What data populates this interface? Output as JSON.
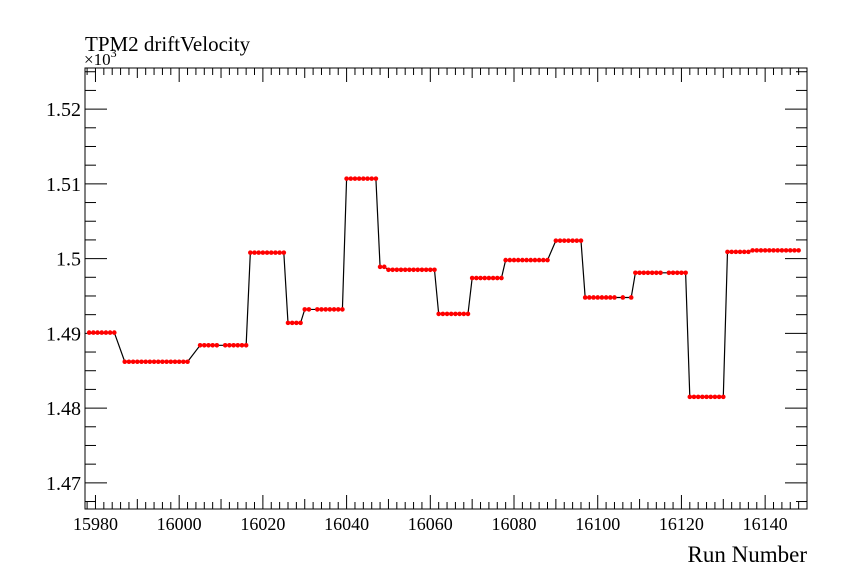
{
  "chart_data": {
    "type": "line",
    "title": "TPM2 driftVelocity",
    "xlabel": "Run Number",
    "ylabel": "",
    "y_multiplier_label": "×10",
    "y_multiplier_exponent": "3",
    "xlim": [
      15977.5,
      16150
    ],
    "ylim": [
      1.4665,
      1.5255
    ],
    "xticks": [
      15980,
      16000,
      16020,
      16040,
      16060,
      16080,
      16100,
      16120,
      16140
    ],
    "xtick_labels": [
      "15980",
      "16000",
      "16020",
      "16040",
      "16060",
      "16080",
      "16100",
      "16120",
      "16140"
    ],
    "yticks": [
      1.47,
      1.48,
      1.49,
      1.5,
      1.51,
      1.52
    ],
    "ytick_labels": [
      "1.47",
      "1.48",
      "1.49",
      "1.5",
      "1.51",
      "1.52"
    ],
    "grid": false,
    "line_color": "#000000",
    "marker_color": "#ff0000",
    "segments": [
      {
        "x_start": 15978.5,
        "x_end": 15984.5,
        "step": 1,
        "y": 1.4901
      },
      {
        "x_start": 15987,
        "x_end": 16002,
        "step": 1,
        "y": 1.4862
      },
      {
        "x_start": 16005,
        "x_end": 16009,
        "step": 1,
        "y": 1.4884
      },
      {
        "x_start": 16011,
        "x_end": 16016,
        "step": 1,
        "y": 1.4884
      },
      {
        "x_start": 16017,
        "x_end": 16025,
        "step": 1,
        "y": 1.5008
      },
      {
        "x_start": 16026,
        "x_end": 16029,
        "step": 1,
        "y": 1.4914
      },
      {
        "x_start": 16030,
        "x_end": 16031,
        "step": 1,
        "y": 1.4932
      },
      {
        "x_start": 16033,
        "x_end": 16039,
        "step": 1,
        "y": 1.4932
      },
      {
        "x_start": 16040,
        "x_end": 16047,
        "step": 1,
        "y": 1.5107
      },
      {
        "x_start": 16048,
        "x_end": 16049,
        "step": 1,
        "y": 1.4989
      },
      {
        "x_start": 16050,
        "x_end": 16061,
        "step": 1,
        "y": 1.4985
      },
      {
        "x_start": 16062,
        "x_end": 16069,
        "step": 1,
        "y": 1.4926
      },
      {
        "x_start": 16070,
        "x_end": 16077,
        "step": 1,
        "y": 1.4974
      },
      {
        "x_start": 16078,
        "x_end": 16088,
        "step": 1,
        "y": 1.4998
      },
      {
        "x_start": 16090,
        "x_end": 16096,
        "step": 1,
        "y": 1.5024
      },
      {
        "x_start": 16097,
        "x_end": 16104,
        "step": 1,
        "y": 1.4948
      },
      {
        "x_start": 16106,
        "x_end": 16106,
        "step": 1,
        "y": 1.4948
      },
      {
        "x_start": 16108,
        "x_end": 16108,
        "step": 1,
        "y": 1.4948
      },
      {
        "x_start": 16109,
        "x_end": 16109,
        "step": 1,
        "y": 1.4981
      },
      {
        "x_start": 16110,
        "x_end": 16115,
        "step": 1,
        "y": 1.4981
      },
      {
        "x_start": 16117,
        "x_end": 16121,
        "step": 1,
        "y": 1.4981
      },
      {
        "x_start": 16122,
        "x_end": 16130,
        "step": 1,
        "y": 1.4815
      },
      {
        "x_start": 16131,
        "x_end": 16136,
        "step": 1,
        "y": 1.5009
      },
      {
        "x_start": 16137,
        "x_end": 16148,
        "step": 1,
        "y": 1.5011
      }
    ]
  }
}
